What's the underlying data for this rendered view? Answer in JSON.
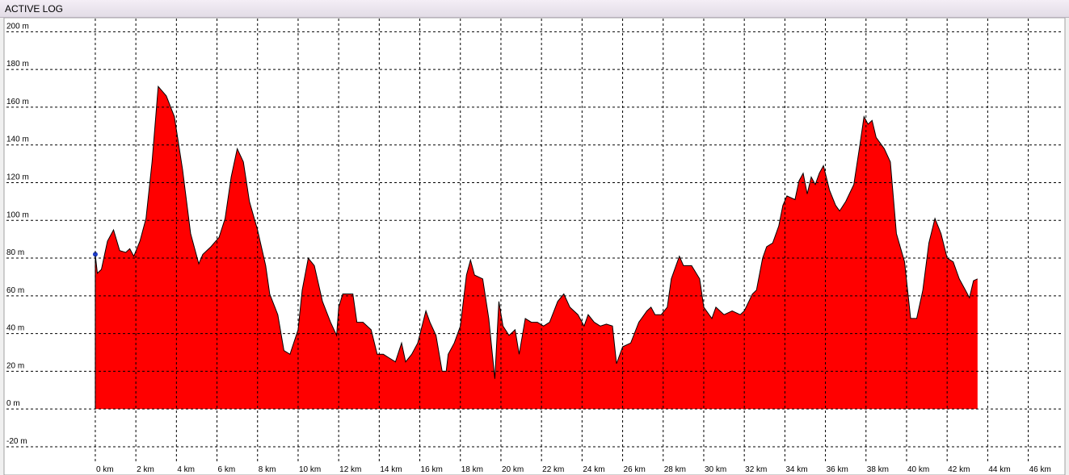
{
  "window": {
    "title": "ACTIVE LOG"
  },
  "chart_data": {
    "type": "area",
    "color": "#ff0000",
    "grid": true,
    "x": [
      0,
      0.1,
      0.3,
      0.6,
      0.9,
      1.2,
      1.5,
      1.7,
      1.9,
      2.2,
      2.5,
      2.8,
      3.1,
      3.5,
      3.9,
      4.3,
      4.7,
      5.1,
      5.3,
      5.7,
      6.1,
      6.4,
      6.7,
      7.0,
      7.3,
      7.6,
      8.0,
      8.4,
      8.6,
      9.0,
      9.3,
      9.6,
      10.0,
      10.2,
      10.5,
      10.8,
      11.2,
      11.6,
      11.9,
      12.0,
      12.2,
      12.7,
      12.9,
      13.2,
      13.6,
      13.9,
      14.2,
      14.5,
      14.8,
      15.1,
      15.3,
      15.6,
      15.9,
      16.3,
      16.5,
      16.8,
      17.1,
      17.3,
      17.4,
      17.7,
      18.0,
      18.3,
      18.5,
      18.7,
      19.1,
      19.4,
      19.7,
      19.9,
      20.1,
      20.4,
      20.7,
      20.9,
      21.2,
      21.5,
      21.8,
      22.1,
      22.4,
      22.8,
      23.1,
      23.4,
      23.8,
      24.1,
      24.3,
      24.6,
      24.9,
      25.2,
      25.5,
      25.7,
      26.0,
      26.4,
      26.8,
      27.2,
      27.4,
      27.6,
      27.9,
      28.2,
      28.4,
      28.8,
      29.0,
      29.4,
      29.8,
      30.0,
      30.4,
      30.6,
      31.0,
      31.4,
      31.8,
      32.0,
      32.4,
      32.6,
      32.9,
      33.1,
      33.4,
      33.7,
      33.9,
      34.1,
      34.5,
      34.7,
      34.9,
      35.1,
      35.3,
      35.5,
      35.7,
      35.9,
      36.2,
      36.5,
      36.7,
      37.0,
      37.4,
      37.7,
      37.9,
      38.1,
      38.3,
      38.5,
      38.9,
      39.2,
      39.5,
      39.9,
      40.2,
      40.5,
      40.8,
      41.1,
      41.4,
      41.7,
      42.0,
      42.3,
      42.6,
      42.9,
      43.1,
      43.3,
      43.5
    ],
    "values": [
      82,
      72,
      74,
      89,
      95,
      84,
      83,
      85,
      81,
      89,
      101,
      131,
      171,
      166,
      155,
      127,
      93,
      77,
      82,
      86,
      91,
      101,
      123,
      138,
      131,
      110,
      95,
      76,
      61,
      50,
      31,
      29,
      42,
      63,
      80,
      76,
      57,
      46,
      39,
      54,
      61,
      61,
      46,
      46,
      42,
      29,
      29,
      27,
      25,
      35,
      25,
      29,
      35,
      52,
      46,
      39,
      20,
      20,
      29,
      35,
      44,
      71,
      79,
      71,
      69,
      48,
      16,
      57,
      44,
      39,
      42,
      29,
      48,
      46,
      46,
      44,
      46,
      57,
      61,
      54,
      50,
      44,
      50,
      46,
      44,
      45,
      44,
      24,
      33,
      35,
      46,
      52,
      54,
      50,
      50,
      54,
      69,
      81,
      76,
      76,
      69,
      54,
      48,
      54,
      50,
      52,
      50,
      52,
      61,
      63,
      80,
      86,
      88,
      97,
      108,
      113,
      111,
      121,
      125,
      114,
      123,
      119,
      125,
      129,
      116,
      108,
      105,
      110,
      119,
      140,
      155,
      151,
      153,
      144,
      138,
      131,
      93,
      78,
      48,
      48,
      63,
      88,
      101,
      93,
      80,
      78,
      69,
      63,
      59,
      68,
      69
    ],
    "xlim": [
      -4.38,
      47.73
    ],
    "ylim": [
      -29,
      207
    ],
    "xticks": [
      {
        "value": 0,
        "label": "0 km"
      },
      {
        "value": 2,
        "label": "2 km"
      },
      {
        "value": 4,
        "label": "4 km"
      },
      {
        "value": 6,
        "label": "6 km"
      },
      {
        "value": 8,
        "label": "8 km"
      },
      {
        "value": 10,
        "label": "10 km"
      },
      {
        "value": 12,
        "label": "12 km"
      },
      {
        "value": 14,
        "label": "14 km"
      },
      {
        "value": 16,
        "label": "16 km"
      },
      {
        "value": 18,
        "label": "18 km"
      },
      {
        "value": 20,
        "label": "20 km"
      },
      {
        "value": 22,
        "label": "22 km"
      },
      {
        "value": 24,
        "label": "24 km"
      },
      {
        "value": 26,
        "label": "26 km"
      },
      {
        "value": 28,
        "label": "28 km"
      },
      {
        "value": 30,
        "label": "30 km"
      },
      {
        "value": 32,
        "label": "32 km"
      },
      {
        "value": 34,
        "label": "34 km"
      },
      {
        "value": 36,
        "label": "36 km"
      },
      {
        "value": 38,
        "label": "38 km"
      },
      {
        "value": 40,
        "label": "40 km"
      },
      {
        "value": 42,
        "label": "42 km"
      },
      {
        "value": 44,
        "label": "44 km"
      },
      {
        "value": 46,
        "label": "46 km"
      }
    ],
    "yticks": [
      {
        "value": -20,
        "label": "-20 m"
      },
      {
        "value": 0,
        "label": "0 m"
      },
      {
        "value": 20,
        "label": "20 m"
      },
      {
        "value": 40,
        "label": "40 m"
      },
      {
        "value": 60,
        "label": "60 m"
      },
      {
        "value": 80,
        "label": "80 m"
      },
      {
        "value": 100,
        "label": "100 m"
      },
      {
        "value": 120,
        "label": "120 m"
      },
      {
        "value": 140,
        "label": "140 m"
      },
      {
        "value": 160,
        "label": "160 m"
      },
      {
        "value": 180,
        "label": "180 m"
      },
      {
        "value": 200,
        "label": "200 m"
      }
    ]
  }
}
